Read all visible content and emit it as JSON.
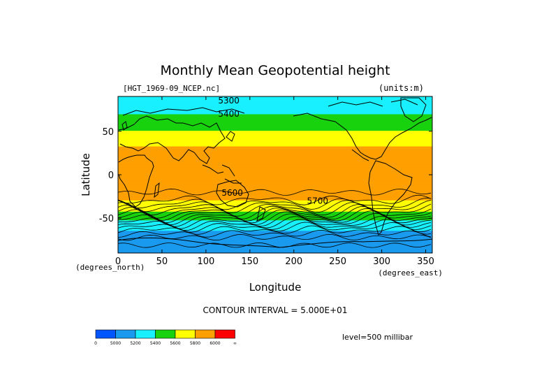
{
  "chart_data": {
    "type": "heatmap",
    "title": "Monthly Mean Geopotential height",
    "subtitle_left": "[HGT_1969-09_NCEP.nc]",
    "subtitle_right": "(units:m)",
    "xlabel": "Longitude",
    "ylabel": "Latitude",
    "x_units": "(degrees_east)",
    "y_units": "(degrees_north)",
    "xlim": [
      0,
      357.5
    ],
    "ylim": [
      -90,
      90
    ],
    "xticks": [
      0,
      50,
      100,
      150,
      200,
      250,
      300,
      350
    ],
    "yticks": [
      -50,
      0,
      50
    ],
    "contour_interval_text": "CONTOUR INTERVAL = 5.000E+01",
    "level_text": "level=500 millibar",
    "contour_labels": [
      {
        "text": "5300",
        "lon": 126,
        "lat": 85
      },
      {
        "text": "5400",
        "lon": 126,
        "lat": 70
      },
      {
        "text": "5600",
        "lon": 130,
        "lat": -21
      },
      {
        "text": "5700",
        "lon": 227,
        "lat": -30
      }
    ],
    "levels": [
      0,
      5000,
      5200,
      5400,
      5600,
      5800,
      6000,
      "∞"
    ],
    "colors": [
      "#0055ff",
      "#1a9aee",
      "#19f0ff",
      "#19d20f",
      "#ffff00",
      "#ff9f00",
      "#ff0000"
    ],
    "legend_labels": [
      "0",
      "5000",
      "5200",
      "5400",
      "5600",
      "5800",
      "6000",
      "∞"
    ],
    "band_profile": [
      {
        "lat": -90,
        "height": 5000
      },
      {
        "lat": -72,
        "height": 5100
      },
      {
        "lat": -62,
        "height": 5220
      },
      {
        "lat": -52,
        "height": 5400
      },
      {
        "lat": -42,
        "height": 5610
      },
      {
        "lat": -31,
        "height": 5790
      },
      {
        "lat": -20,
        "height": 5850
      },
      {
        "lat": 0,
        "height": 5870
      },
      {
        "lat": 18,
        "height": 5860
      },
      {
        "lat": 33,
        "height": 5800
      },
      {
        "lat": 45,
        "height": 5680
      },
      {
        "lat": 55,
        "height": 5550
      },
      {
        "lat": 68,
        "height": 5420
      },
      {
        "lat": 80,
        "height": 5320
      },
      {
        "lat": 90,
        "height": 5290
      }
    ]
  }
}
